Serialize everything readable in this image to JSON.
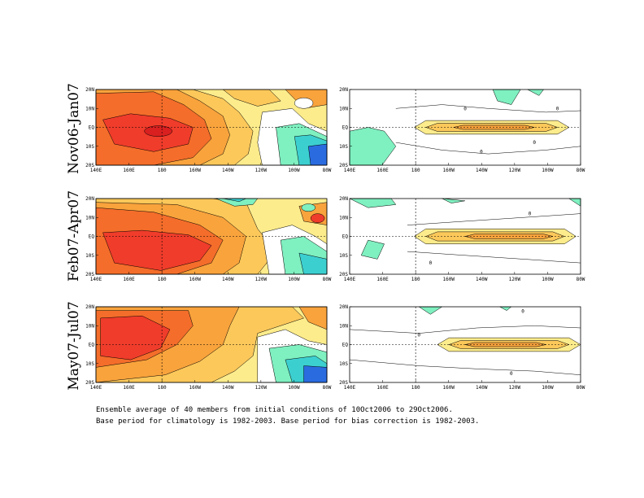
{
  "chart_data": {
    "type": "heatmap",
    "title": "",
    "xlabel": "",
    "ylabel": "",
    "x_ticks": [
      "140E",
      "160E",
      "180",
      "160W",
      "140W",
      "120W",
      "100W",
      "80W"
    ],
    "y_ticks": [
      "20N",
      "10N",
      "EQ",
      "10S",
      "20S"
    ],
    "xlim_deg_east": [
      140,
      280
    ],
    "ylim_deg_lat": [
      -20,
      20
    ],
    "panels_per_row": 2,
    "rows": [
      {
        "label": "Nov06-Jan07",
        "left_contour_labels": [],
        "right_contour_labels": [
          "0",
          "0",
          "0",
          "0"
        ]
      },
      {
        "label": "Feb07-Apr07",
        "left_contour_labels": [],
        "right_contour_labels": [
          "0",
          "0"
        ]
      },
      {
        "label": "May07-Jul07",
        "left_contour_labels": [],
        "right_contour_labels": [
          "0",
          "0",
          "0"
        ]
      }
    ],
    "colors": {
      "dark_red": "#d91f1f",
      "red": "#f03c2b",
      "orange_red": "#f46d2a",
      "orange": "#f9a33c",
      "light_orange": "#fcc85a",
      "yellow": "#fdec8c",
      "white": "#ffffff",
      "mint": "#7ff0c0",
      "teal": "#3ccfd0",
      "cyan": "#28b3e6",
      "blue": "#2a6be0",
      "dark_blue": "#1a2fb8"
    },
    "grid": false,
    "dashed_reference_lines": [
      "EQ",
      "180"
    ]
  },
  "footnote": {
    "line1": "Ensemble average of 40 members from initial conditions of 10Oct2006 to 29Oct2006.",
    "line2": "Base period for climatology is 1982-2003. Base period for bias correction is 1982-2003."
  }
}
